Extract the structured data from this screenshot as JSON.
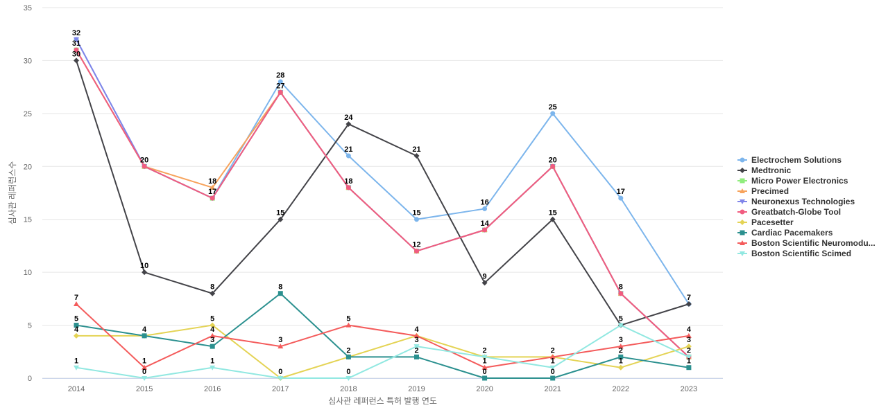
{
  "chart_data": {
    "type": "line",
    "title": "",
    "xlabel": "심사관 레퍼런스 특허 발행 연도",
    "ylabel": "심사관 레퍼런스수",
    "x": [
      "2014",
      "2015",
      "2016",
      "2017",
      "2018",
      "2019",
      "2020",
      "2021",
      "2022",
      "2023"
    ],
    "ylim": [
      0,
      35
    ],
    "yticks": [
      0,
      5,
      10,
      15,
      20,
      25,
      30,
      35
    ],
    "grid": true,
    "legend_position": "right",
    "series": [
      {
        "name": "Electrochem Solutions",
        "color": "#7cb5ec",
        "marker": "circle",
        "values": [
          32,
          20,
          17,
          28,
          21,
          15,
          16,
          25,
          17,
          7
        ]
      },
      {
        "name": "Medtronic",
        "color": "#434348",
        "marker": "diamond",
        "values": [
          30,
          10,
          8,
          15,
          24,
          21,
          9,
          15,
          5,
          7
        ]
      },
      {
        "name": "Micro Power Electronics",
        "color": "#90ed7d",
        "marker": "square",
        "values": [
          31,
          20,
          17,
          27,
          18,
          12,
          14,
          20,
          8,
          2
        ]
      },
      {
        "name": "Precimed",
        "color": "#f7a35c",
        "marker": "triangle",
        "values": [
          31,
          20,
          18,
          27,
          18,
          12,
          14,
          20,
          8,
          2
        ]
      },
      {
        "name": "Neuronexus Technologies",
        "color": "#8085e9",
        "marker": "triangle-down",
        "values": [
          32,
          20,
          17,
          27,
          18,
          12,
          14,
          20,
          8,
          2
        ]
      },
      {
        "name": "Greatbatch-Globe Tool",
        "color": "#f15c80",
        "marker": "circle",
        "values": [
          31,
          20,
          17,
          27,
          18,
          12,
          14,
          20,
          8,
          2
        ]
      },
      {
        "name": "Pacesetter",
        "color": "#e4d354",
        "marker": "diamond",
        "values": [
          4,
          4,
          5,
          0,
          2,
          4,
          2,
          2,
          1,
          3
        ]
      },
      {
        "name": "Cardiac Pacemakers",
        "color": "#2b908f",
        "marker": "square",
        "values": [
          5,
          4,
          3,
          8,
          2,
          2,
          0,
          0,
          2,
          1
        ]
      },
      {
        "name": "Boston Scientific Neuromodu...",
        "color": "#f45b5b",
        "marker": "triangle",
        "values": [
          7,
          1,
          4,
          3,
          5,
          4,
          1,
          2,
          3,
          4
        ]
      },
      {
        "name": "Boston Scientific Scimed",
        "color": "#91e8e1",
        "marker": "triangle-down",
        "values": [
          1,
          0,
          1,
          0,
          0,
          3,
          2,
          1,
          5,
          2
        ]
      }
    ],
    "data_labels": [
      {
        "x": "2014",
        "y": 32,
        "text": "32"
      },
      {
        "x": "2014",
        "y": 31,
        "text": "31"
      },
      {
        "x": "2014",
        "y": 30,
        "text": "30"
      },
      {
        "x": "2014",
        "y": 7,
        "text": "7"
      },
      {
        "x": "2014",
        "y": 5,
        "text": "5"
      },
      {
        "x": "2014",
        "y": 4,
        "text": "4"
      },
      {
        "x": "2014",
        "y": 1,
        "text": "1"
      },
      {
        "x": "2015",
        "y": 20,
        "text": "20"
      },
      {
        "x": "2015",
        "y": 10,
        "text": "10"
      },
      {
        "x": "2015",
        "y": 4,
        "text": "4"
      },
      {
        "x": "2015",
        "y": 1,
        "text": "1"
      },
      {
        "x": "2015",
        "y": 0,
        "text": "0"
      },
      {
        "x": "2016",
        "y": 18,
        "text": "18"
      },
      {
        "x": "2016",
        "y": 17,
        "text": "17"
      },
      {
        "x": "2016",
        "y": 8,
        "text": "8"
      },
      {
        "x": "2016",
        "y": 5,
        "text": "5"
      },
      {
        "x": "2016",
        "y": 4,
        "text": "4"
      },
      {
        "x": "2016",
        "y": 3,
        "text": "3"
      },
      {
        "x": "2016",
        "y": 1,
        "text": "1"
      },
      {
        "x": "2017",
        "y": 28,
        "text": "28"
      },
      {
        "x": "2017",
        "y": 27,
        "text": "27"
      },
      {
        "x": "2017",
        "y": 15,
        "text": "15"
      },
      {
        "x": "2017",
        "y": 8,
        "text": "8"
      },
      {
        "x": "2017",
        "y": 3,
        "text": "3"
      },
      {
        "x": "2017",
        "y": 0,
        "text": "0"
      },
      {
        "x": "2018",
        "y": 24,
        "text": "24"
      },
      {
        "x": "2018",
        "y": 21,
        "text": "21"
      },
      {
        "x": "2018",
        "y": 18,
        "text": "18"
      },
      {
        "x": "2018",
        "y": 5,
        "text": "5"
      },
      {
        "x": "2018",
        "y": 2,
        "text": "2"
      },
      {
        "x": "2018",
        "y": 0,
        "text": "0"
      },
      {
        "x": "2019",
        "y": 21,
        "text": "21"
      },
      {
        "x": "2019",
        "y": 15,
        "text": "15"
      },
      {
        "x": "2019",
        "y": 12,
        "text": "12"
      },
      {
        "x": "2019",
        "y": 4,
        "text": "4"
      },
      {
        "x": "2019",
        "y": 3,
        "text": "3"
      },
      {
        "x": "2019",
        "y": 2,
        "text": "2"
      },
      {
        "x": "2020",
        "y": 16,
        "text": "16"
      },
      {
        "x": "2020",
        "y": 14,
        "text": "14"
      },
      {
        "x": "2020",
        "y": 9,
        "text": "9"
      },
      {
        "x": "2020",
        "y": 2,
        "text": "2"
      },
      {
        "x": "2020",
        "y": 1,
        "text": "1"
      },
      {
        "x": "2020",
        "y": 0,
        "text": "0"
      },
      {
        "x": "2021",
        "y": 25,
        "text": "25"
      },
      {
        "x": "2021",
        "y": 20,
        "text": "20"
      },
      {
        "x": "2021",
        "y": 15,
        "text": "15"
      },
      {
        "x": "2021",
        "y": 2,
        "text": "2"
      },
      {
        "x": "2021",
        "y": 1,
        "text": "1"
      },
      {
        "x": "2021",
        "y": 0,
        "text": "0"
      },
      {
        "x": "2022",
        "y": 17,
        "text": "17"
      },
      {
        "x": "2022",
        "y": 8,
        "text": "8"
      },
      {
        "x": "2022",
        "y": 5,
        "text": "5"
      },
      {
        "x": "2022",
        "y": 3,
        "text": "3"
      },
      {
        "x": "2022",
        "y": 2,
        "text": "2"
      },
      {
        "x": "2022",
        "y": 1,
        "text": "1"
      },
      {
        "x": "2023",
        "y": 7,
        "text": "7"
      },
      {
        "x": "2023",
        "y": 4,
        "text": "4"
      },
      {
        "x": "2023",
        "y": 3,
        "text": "3"
      },
      {
        "x": "2023",
        "y": 2,
        "text": "2"
      },
      {
        "x": "2023",
        "y": 1,
        "text": "1"
      }
    ]
  }
}
